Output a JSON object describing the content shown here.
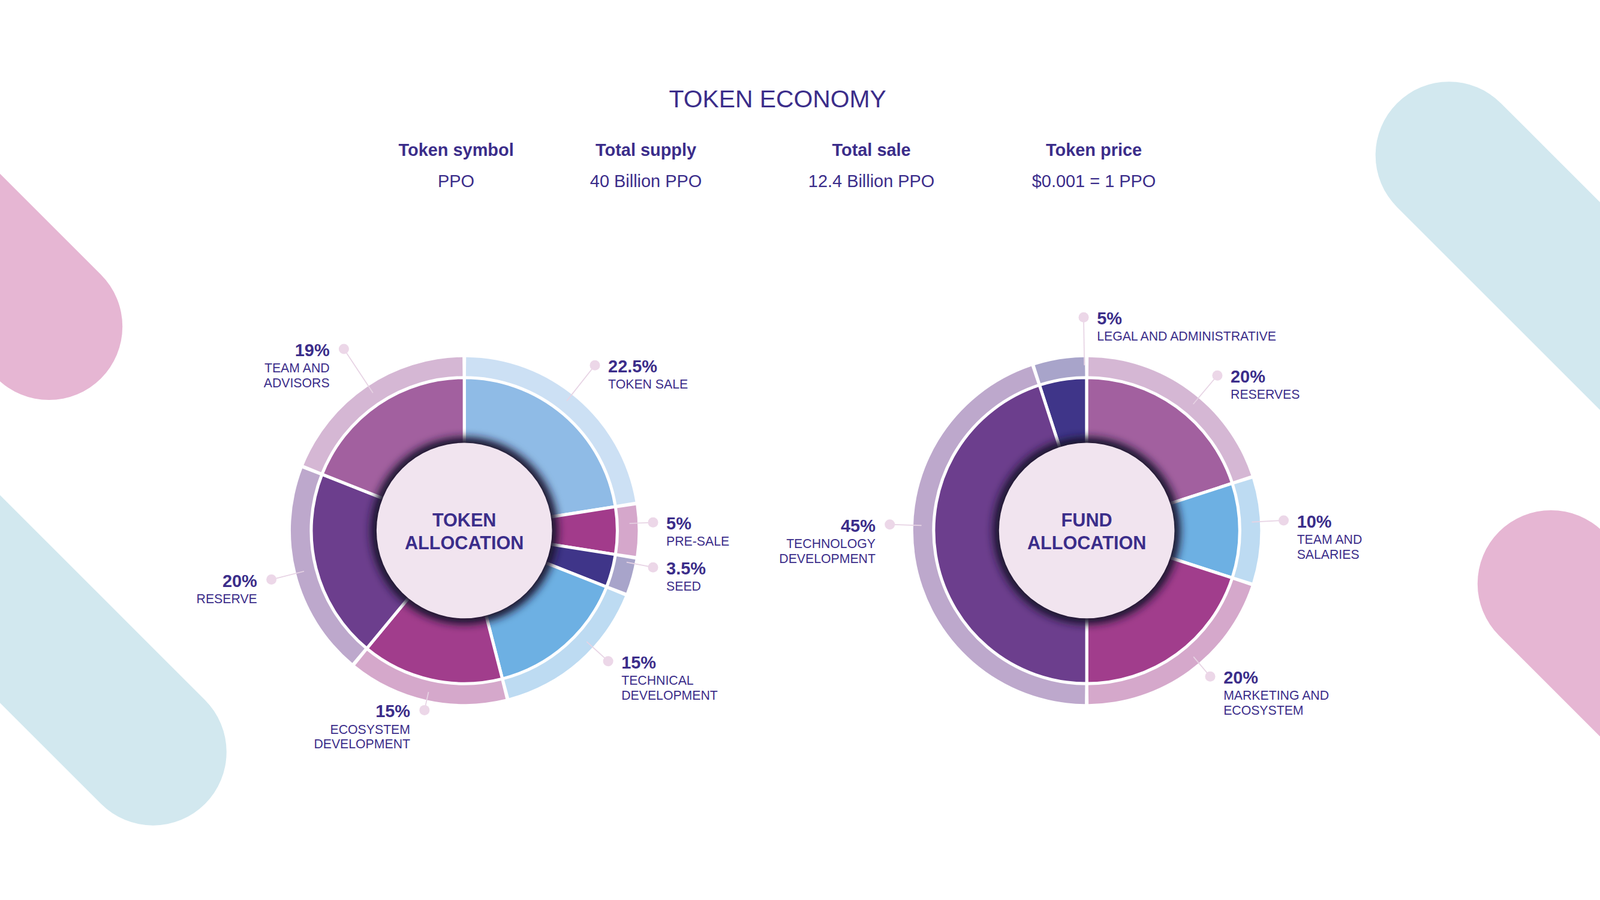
{
  "title": "TOKEN ECONOMY",
  "facts": [
    {
      "label": "Token symbol",
      "value": "PPO"
    },
    {
      "label": "Total supply",
      "value": "40 Billion PPO"
    },
    {
      "label": "Total sale",
      "value": "12.4 Billion PPO"
    },
    {
      "label": "Token price",
      "value": "$0.001 = 1 PPO"
    }
  ],
  "chart_data": [
    {
      "type": "donut",
      "title": "TOKEN ALLOCATION",
      "categories": [
        "TOKEN SALE",
        "PRE-SALE",
        "SEED",
        "TECHNICAL DEVELOPMENT",
        "ECOSYSTEM DEVELOPMENT",
        "RESERVE",
        "TEAM AND ADVISORS"
      ],
      "values": [
        22.5,
        5,
        3.5,
        15,
        15,
        20,
        19
      ],
      "value_labels": [
        "22.5%",
        "5%",
        "3.5%",
        "15%",
        "15%",
        "20%",
        "19%"
      ],
      "colors": [
        "#8fbbe6",
        "#a23b8b",
        "#3f3589",
        "#6db0e3",
        "#a13d8c",
        "#6c3e8d",
        "#a2609f"
      ],
      "data_labels": true
    },
    {
      "type": "donut",
      "title": "FUND ALLOCATION",
      "categories": [
        "LEGAL AND ADMINISTRATIVE",
        "RESERVES",
        "TEAM AND SALARIES",
        "MARKETING AND ECOSYSTEM",
        "TECHNOLOGY DEVELOPMENT"
      ],
      "values": [
        5,
        20,
        10,
        20,
        45
      ],
      "value_labels": [
        "5%",
        "20%",
        "10%",
        "20%",
        "45%"
      ],
      "colors": [
        "#3f3589",
        "#a2609f",
        "#6db0e3",
        "#a13d8c",
        "#6c3e8d"
      ],
      "data_labels": true
    }
  ]
}
